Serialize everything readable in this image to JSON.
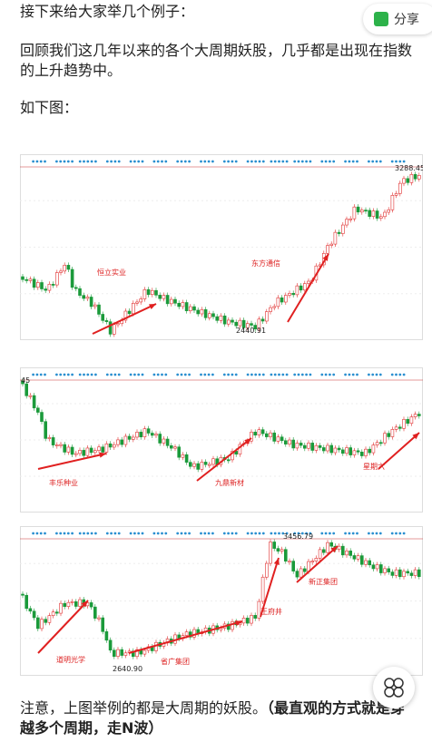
{
  "share": "分享",
  "paragraphs": [
    "接下来给大家举几个例子：",
    "回顾我们这几年以来的各个大周期妖股，几乎都是出现在指数的上升趋势中。",
    "如下图："
  ],
  "figures": [
    {
      "labels": [
        "恒立实业",
        "东方通信"
      ],
      "prices": [
        "3288.45",
        "2440.91"
      ]
    },
    {
      "labels": [
        "丰乐种业",
        "九鼎新材",
        "星期六"
      ],
      "prices": [
        "45"
      ]
    },
    {
      "labels": [
        "道明光学",
        "省广集团",
        "王府井",
        "新正集团"
      ],
      "prices": [
        "3456.79",
        "2640.90"
      ]
    }
  ],
  "note": {
    "text": "注意，上图举例的都是大周期的妖股。",
    "emphasis": "（最直观的方式就是穿越多个周期，走N波）"
  }
}
